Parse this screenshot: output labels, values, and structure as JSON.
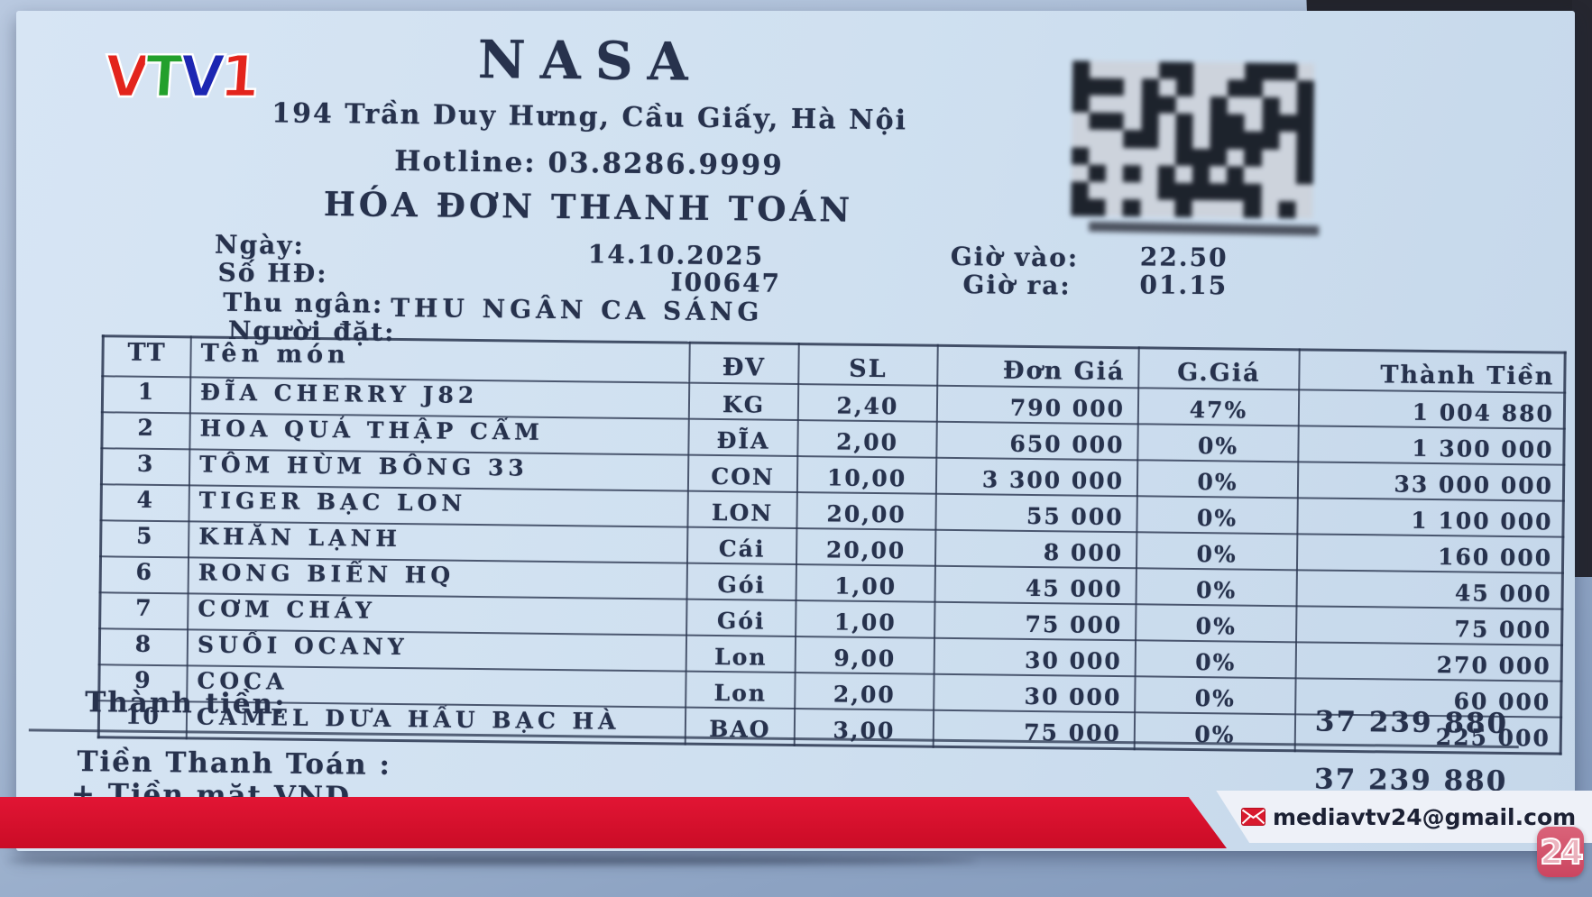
{
  "channel": {
    "logo": {
      "l1": "V",
      "l2": "T",
      "l3": "V",
      "l4": "1"
    },
    "badge": "24",
    "email": "mediavtv24@gmail.com"
  },
  "receipt": {
    "store": "NASA",
    "address": "194 Trần Duy Hưng, Cầu Giấy, Hà Nội",
    "hotline": "Hotline: 03.8286.9999",
    "title": "HÓA ĐƠN THANH TOÁN",
    "meta": {
      "date_label": "Ngày:",
      "date": "14.10.2025",
      "invoice_label": "Số HĐ:",
      "invoice": "I00647",
      "cashier_label": "Thu ngân:",
      "cashier": "THU NGÂN CA SÁNG",
      "orderer_label": "Người đặt:",
      "time_in_label": "Giờ vào:",
      "time_in": "22.50",
      "time_out_label": "Giờ ra:",
      "time_out": "01.15"
    },
    "table": {
      "columns": [
        "TT",
        "Tên món",
        "ĐV",
        "SL",
        "Đơn Giá",
        "G.Giá",
        "Thành Tiền"
      ],
      "rows": [
        [
          "1",
          "ĐĨA CHERRY J82",
          "KG",
          "2,40",
          "790 000",
          "47%",
          "1 004 880"
        ],
        [
          "2",
          "HOA QUẢ THẬP CẨM",
          "ĐĨA",
          "2,00",
          "650 000",
          "0%",
          "1 300 000"
        ],
        [
          "3",
          "TÔM HÙM BÔNG 33",
          "CON",
          "10,00",
          "3 300 000",
          "0%",
          "33 000 000"
        ],
        [
          "4",
          "TIGER BẠC LON",
          "LON",
          "20,00",
          "55 000",
          "0%",
          "1 100 000"
        ],
        [
          "5",
          "KHĂN LẠNH",
          "Cái",
          "20,00",
          "8 000",
          "0%",
          "160 000"
        ],
        [
          "6",
          "RONG BIỂN HQ",
          "Gói",
          "1,00",
          "45 000",
          "0%",
          "45 000"
        ],
        [
          "7",
          "CƠM CHÁY",
          "Gói",
          "1,00",
          "75 000",
          "0%",
          "75 000"
        ],
        [
          "8",
          "SUỐI OCANY",
          "Lon",
          "9,00",
          "30 000",
          "0%",
          "270 000"
        ],
        [
          "9",
          "COCA",
          "Lon",
          "2,00",
          "30 000",
          "0%",
          "60 000"
        ],
        [
          "10",
          "CAMEL DƯA HẤU BẠC HÀ",
          "BAO",
          "3,00",
          "75 000",
          "0%",
          "225 000"
        ]
      ]
    },
    "totals": {
      "subtotal_label": "Thành tiền:",
      "subtotal": "37 239 880",
      "payment_label": "Tiền Thanh Toán :",
      "payment": "37 239 880",
      "cash_label": "+ Tiền mặt VND"
    }
  },
  "colors": {
    "ticker_red": "#d40e2b",
    "ink_navy": "#27324d",
    "badge_red": "#cb4560",
    "logo_red": "#e3241c",
    "logo_green": "#23a02c",
    "logo_blue": "#1d26b2",
    "paper_blue": "#cfe0f0"
  }
}
